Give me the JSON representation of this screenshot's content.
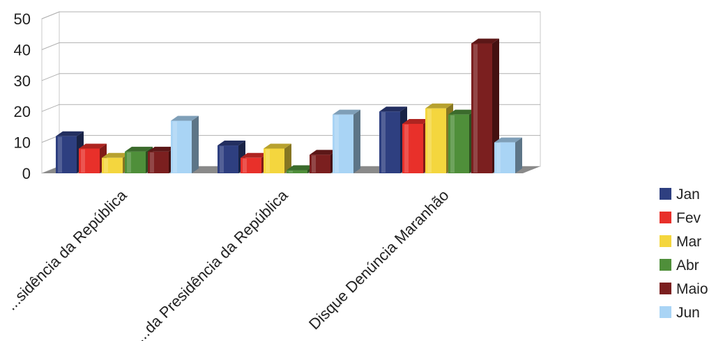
{
  "chart_data": {
    "type": "bar",
    "style": "3d-clustered-column",
    "categories": [
      "...sidência da República",
      "...da Presidência da República",
      "Disque Denúncia Maranhão"
    ],
    "series": [
      {
        "name": "Jan",
        "color": "#2e3f80",
        "values": [
          12,
          9,
          20
        ]
      },
      {
        "name": "Fev",
        "color": "#e8302a",
        "values": [
          8,
          5,
          16
        ]
      },
      {
        "name": "Mar",
        "color": "#f4d63e",
        "values": [
          5,
          8,
          21
        ]
      },
      {
        "name": "Abr",
        "color": "#4f8f3a",
        "values": [
          7,
          1,
          19
        ]
      },
      {
        "name": "Maio",
        "color": "#7b1f1f",
        "values": [
          7,
          6,
          42
        ]
      },
      {
        "name": "Jun",
        "color": "#a9d4f5",
        "values": [
          17,
          19,
          10
        ]
      }
    ],
    "yticks": [
      "0",
      "10",
      "20",
      "30",
      "40",
      "50"
    ],
    "ylim": [
      0,
      50
    ],
    "grid": true,
    "legend_position": "right"
  }
}
